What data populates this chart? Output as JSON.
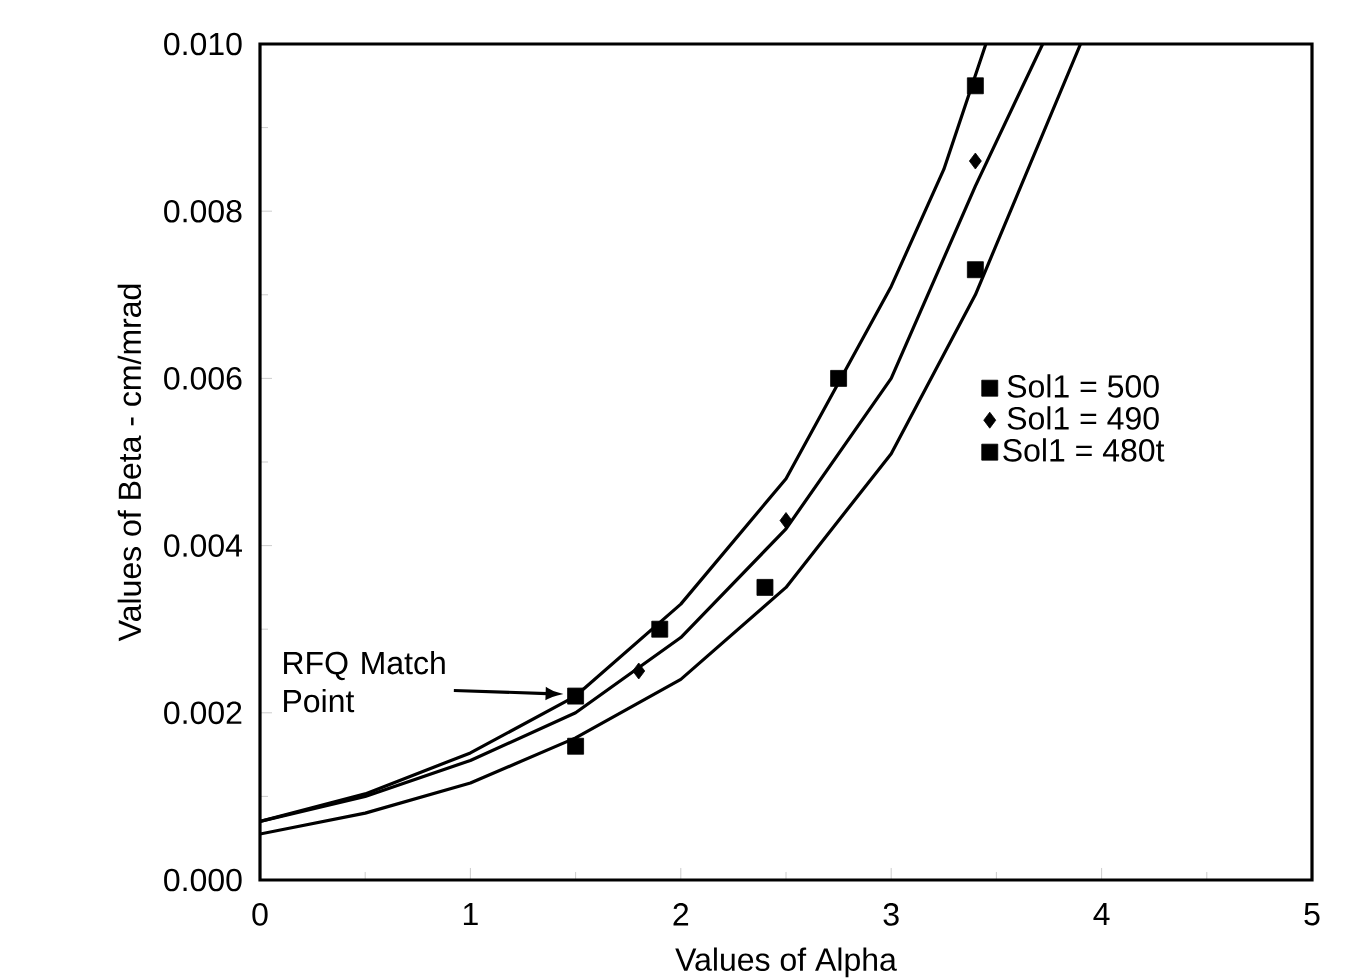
{
  "chart_data": {
    "type": "line",
    "xlabel": "Values of Alpha",
    "ylabel": "Values of Beta  -  cm/mrad",
    "xlim": [
      0,
      5
    ],
    "ylim": [
      0,
      0.01
    ],
    "xticks": [
      0,
      1,
      2,
      3,
      4,
      5
    ],
    "yticks": [
      {
        "value": 0,
        "label": "0.000"
      },
      {
        "value": 0.002,
        "label": "0.002"
      },
      {
        "value": 0.004,
        "label": "0.004"
      },
      {
        "value": 0.006,
        "label": "0.006"
      },
      {
        "value": 0.008,
        "label": "0.008"
      },
      {
        "value": 0.01,
        "label": "0.010"
      }
    ],
    "legend": "right",
    "grid": false,
    "series": [
      {
        "type": "line",
        "color": "#000000",
        "marker": "none",
        "x": [
          0,
          0.5,
          1,
          1.5,
          2,
          2.5,
          3,
          3.25,
          3.45
        ],
        "values": [
          0.0007,
          0.00103,
          0.00152,
          0.0022,
          0.0033,
          0.0048,
          0.0071,
          0.0085,
          0.01
        ]
      },
      {
        "type": "line",
        "color": "#000000",
        "marker": "none",
        "x": [
          0,
          0.5,
          1,
          1.5,
          2,
          2.5,
          3,
          3.4,
          3.72
        ],
        "values": [
          0.0007,
          0.001,
          0.00143,
          0.002,
          0.0029,
          0.0042,
          0.006,
          0.0083,
          0.01
        ]
      },
      {
        "type": "line",
        "color": "#000000",
        "marker": "none",
        "x": [
          0,
          0.5,
          1,
          1.5,
          2,
          2.5,
          3,
          3.4,
          3.9
        ],
        "values": [
          0.00055,
          0.0008,
          0.00116,
          0.0017,
          0.0024,
          0.0035,
          0.0051,
          0.007,
          0.01
        ]
      },
      {
        "type": "scatter",
        "name": "Sol1 = 500",
        "color": "#000000",
        "marker": "square",
        "x": [
          1.5,
          1.9,
          2.75,
          3.4
        ],
        "values": [
          0.0022,
          0.003,
          0.006,
          0.0095
        ]
      },
      {
        "type": "scatter",
        "name": "Sol1 = 490",
        "color": "#000000",
        "marker": "diamond",
        "x": [
          1.8,
          2.5,
          3.4
        ],
        "values": [
          0.0025,
          0.0043,
          0.0086
        ]
      },
      {
        "type": "scatter",
        "name": "Sol1 = 480t",
        "color": "#000000",
        "marker": "square",
        "x": [
          1.5,
          2.4,
          3.4
        ],
        "values": [
          0.0016,
          0.0035,
          0.0073
        ]
      }
    ],
    "annotations": [
      "RFQ Match Point"
    ]
  }
}
